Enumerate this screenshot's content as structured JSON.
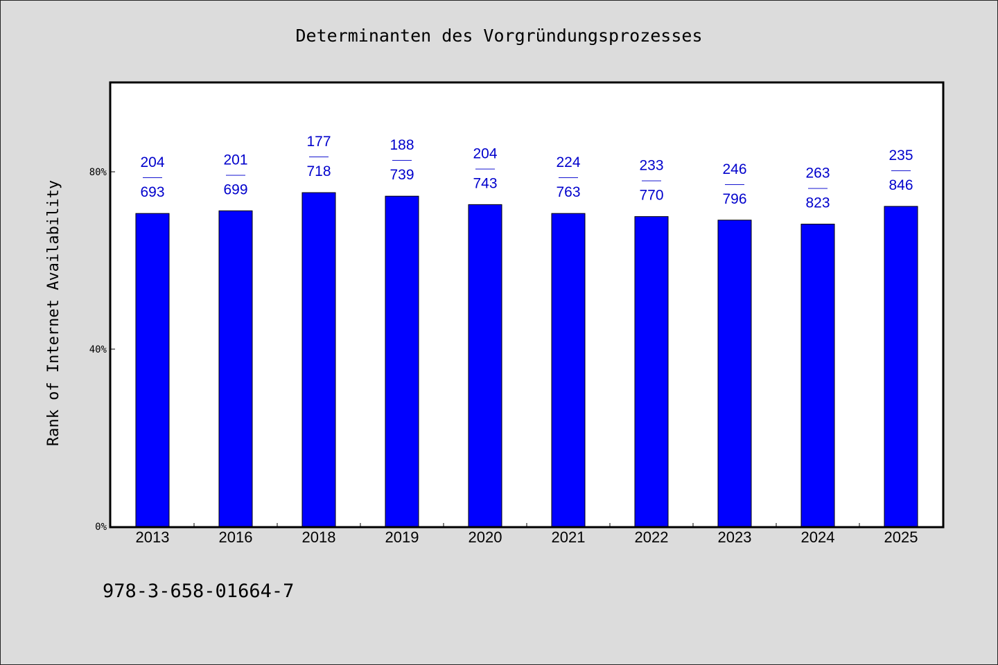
{
  "chart_data": {
    "type": "bar",
    "title": "Determinanten des Vorgründungsprozesses",
    "ylabel": "Rank of Internet Availability",
    "xlabel": "",
    "categories": [
      "2013",
      "2016",
      "2018",
      "2019",
      "2020",
      "2021",
      "2022",
      "2023",
      "2024",
      "2025"
    ],
    "values": [
      0.706,
      0.712,
      0.753,
      0.745,
      0.726,
      0.706,
      0.699,
      0.691,
      0.682,
      0.722
    ],
    "labels": [
      {
        "top": "204",
        "sep": "——",
        "bottom": "693"
      },
      {
        "top": "201",
        "sep": "——",
        "bottom": "699"
      },
      {
        "top": "177",
        "sep": "——",
        "bottom": "718"
      },
      {
        "top": "188",
        "sep": "——",
        "bottom": "739"
      },
      {
        "top": "204",
        "sep": "——",
        "bottom": "743"
      },
      {
        "top": "224",
        "sep": "——",
        "bottom": "763"
      },
      {
        "top": "233",
        "sep": "——",
        "bottom": "770"
      },
      {
        "top": "246",
        "sep": "——",
        "bottom": "796"
      },
      {
        "top": "263",
        "sep": "——",
        "bottom": "823"
      },
      {
        "top": "235",
        "sep": "——",
        "bottom": "846"
      }
    ],
    "ylim": [
      0,
      1.0
    ],
    "yticks": [
      0,
      0.4,
      0.8
    ],
    "ytick_labels": [
      "0%",
      "40%",
      "80%"
    ],
    "grid": false,
    "bar_color": "#0000ff",
    "label_color": "#0000cc"
  },
  "footer": {
    "isbn": "978-3-658-01664-7"
  }
}
